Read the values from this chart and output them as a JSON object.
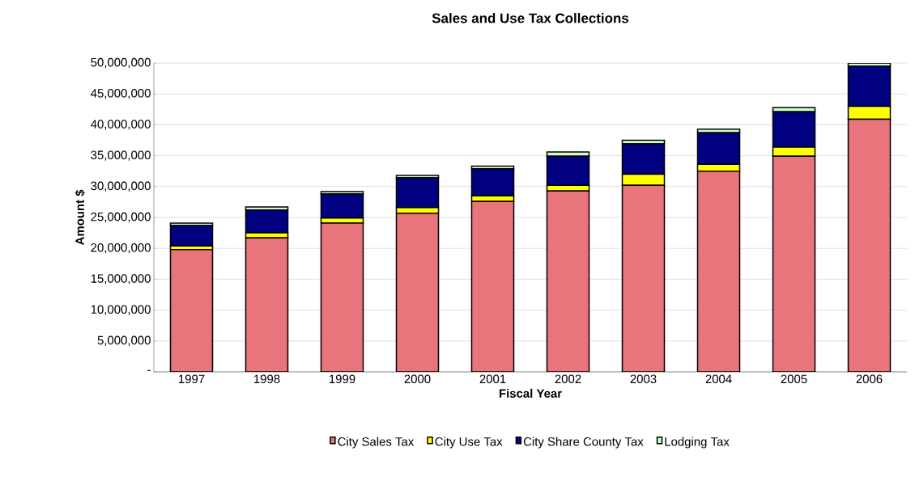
{
  "chart_data": {
    "type": "bar",
    "stacked": true,
    "title": "Sales and Use Tax Collections",
    "xlabel": "Fiscal Year",
    "ylabel": "Amount $",
    "categories": [
      "1997",
      "1998",
      "1999",
      "2000",
      "2001",
      "2002",
      "2003",
      "2004",
      "2005",
      "2006"
    ],
    "series": [
      {
        "name": "City Sales Tax",
        "color": "#e8747c",
        "values": [
          19800000,
          21700000,
          24100000,
          25700000,
          27600000,
          29300000,
          30200000,
          32500000,
          34900000,
          40900000
        ]
      },
      {
        "name": "City Use Tax",
        "color": "#ffff00",
        "values": [
          600000,
          800000,
          800000,
          900000,
          900000,
          900000,
          1800000,
          1100000,
          1500000,
          2100000
        ]
      },
      {
        "name": "City Share County Tax",
        "color": "#000080",
        "values": [
          3300000,
          3700000,
          3900000,
          4800000,
          4400000,
          4700000,
          4900000,
          5100000,
          5700000,
          6500000
        ]
      },
      {
        "name": "Lodging Tax",
        "color": "#ccffcc",
        "values": [
          400000,
          500000,
          400000,
          400000,
          400000,
          700000,
          600000,
          600000,
          700000,
          500000
        ]
      }
    ],
    "ylim": [
      0,
      50000000
    ],
    "yticks": [
      {
        "value": 0,
        "label": "-"
      },
      {
        "value": 5000000,
        "label": "5,000,000"
      },
      {
        "value": 10000000,
        "label": "10,000,000"
      },
      {
        "value": 15000000,
        "label": "15,000,000"
      },
      {
        "value": 20000000,
        "label": "20,000,000"
      },
      {
        "value": 25000000,
        "label": "25,000,000"
      },
      {
        "value": 30000000,
        "label": "30,000,000"
      },
      {
        "value": 35000000,
        "label": "35,000,000"
      },
      {
        "value": 40000000,
        "label": "40,000,000"
      },
      {
        "value": 45000000,
        "label": "45,000,000"
      },
      {
        "value": 50000000,
        "label": "50,000,000"
      }
    ],
    "grid": "y",
    "legend": "bottom"
  }
}
